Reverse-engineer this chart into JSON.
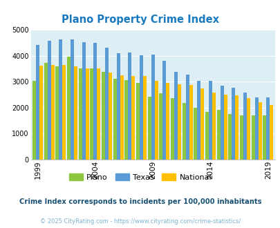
{
  "title": "Plano Property Crime Index",
  "title_color": "#1a7abf",
  "years": [
    1999,
    2000,
    2001,
    2002,
    2003,
    2004,
    2005,
    2006,
    2007,
    2008,
    2009,
    2010,
    2011,
    2012,
    2013,
    2014,
    2015,
    2016,
    2017,
    2018,
    2019
  ],
  "plano": [
    3020,
    3720,
    3600,
    3960,
    3500,
    3500,
    3380,
    3100,
    3050,
    2950,
    2430,
    2550,
    2360,
    2170,
    1990,
    1840,
    1920,
    1750,
    1690,
    1700,
    1690
  ],
  "texas": [
    4420,
    4580,
    4620,
    4620,
    4510,
    4490,
    4310,
    4090,
    4110,
    4010,
    4030,
    3810,
    3380,
    3260,
    3040,
    3030,
    2840,
    2760,
    2570,
    2390,
    2390
  ],
  "national": [
    3610,
    3650,
    3650,
    3600,
    3500,
    3510,
    3350,
    3250,
    3220,
    3220,
    3030,
    2960,
    2900,
    2870,
    2730,
    2590,
    2500,
    2460,
    2370,
    2210,
    2110
  ],
  "plano_color": "#8dc63f",
  "texas_color": "#5b9bd5",
  "national_color": "#ffc000",
  "bg_color": "#ddeef5",
  "ylim": [
    0,
    5000
  ],
  "yticks": [
    0,
    1000,
    2000,
    3000,
    4000,
    5000
  ],
  "xtick_years": [
    1999,
    2004,
    2009,
    2014,
    2019
  ],
  "subtitle": "Crime Index corresponds to incidents per 100,000 inhabitants",
  "subtitle_color": "#1a5276",
  "footer": "© 2025 CityRating.com - https://www.cityrating.com/crime-statistics/",
  "footer_color": "#7fb3d3"
}
